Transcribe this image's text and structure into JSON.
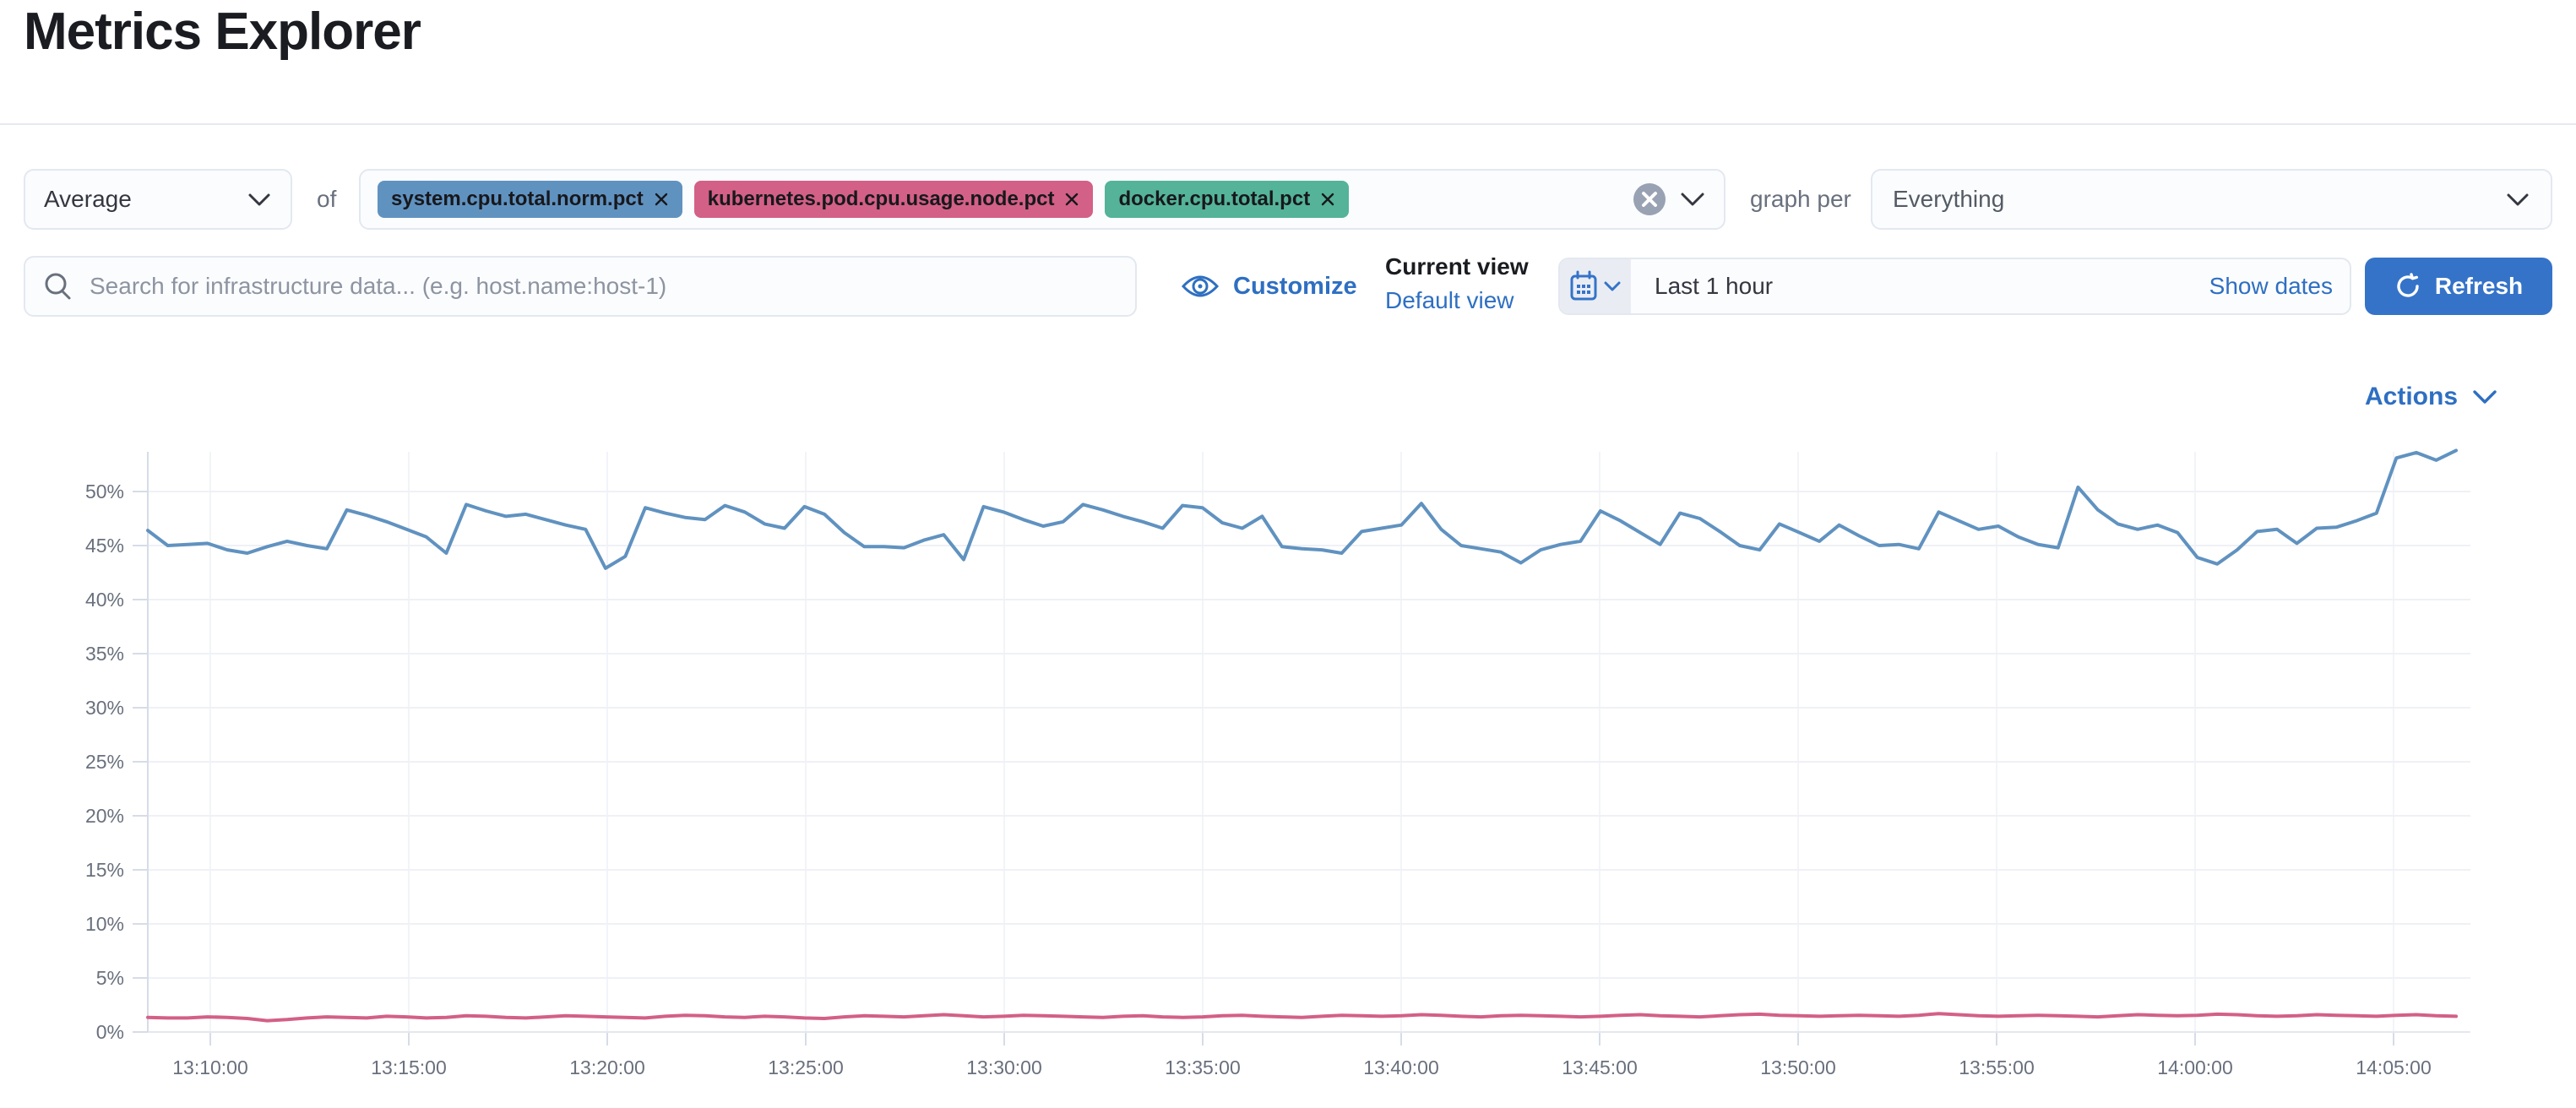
{
  "page": {
    "title": "Metrics Explorer"
  },
  "toolbar": {
    "aggregation": {
      "value": "Average"
    },
    "of_label": "of",
    "metrics": [
      {
        "label": "system.cpu.total.norm.pct",
        "color": "#6092c0"
      },
      {
        "label": "kubernetes.pod.cpu.usage.node.pct",
        "color": "#d36086"
      },
      {
        "label": "docker.cpu.total.pct",
        "color": "#54b399"
      }
    ],
    "graph_per_label": "graph per",
    "group_by": {
      "value": "Everything"
    }
  },
  "search": {
    "placeholder": "Search for infrastructure data... (e.g. host.name:host-1)"
  },
  "view_controls": {
    "customize_label": "Customize",
    "current_view_label": "Current view",
    "view_name": "Default view"
  },
  "time_controls": {
    "range_label": "Last 1 hour",
    "show_dates_label": "Show dates",
    "refresh_label": "Refresh"
  },
  "actions": {
    "label": "Actions"
  },
  "colors": {
    "link_blue": "#2e6fc2",
    "primary_button_blue": "#3573c8",
    "series_blue": "#6092c0",
    "series_pink": "#d36086",
    "badge_green": "#54b399"
  },
  "chart_data": {
    "type": "line",
    "title": "",
    "xlabel": "",
    "ylabel": "",
    "grid": true,
    "legend": "none",
    "y_axis": {
      "min": 0,
      "max": 53,
      "tick_step_pct": 5,
      "tick_labels": [
        "0%",
        "5%",
        "10%",
        "15%",
        "20%",
        "25%",
        "30%",
        "35%",
        "40%",
        "45%",
        "50%"
      ]
    },
    "x_axis": {
      "tick_labels": [
        "13:10:00",
        "13:15:00",
        "13:20:00",
        "13:25:00",
        "13:30:00",
        "13:35:00",
        "13:40:00",
        "13:45:00",
        "13:50:00",
        "13:55:00",
        "14:00:00",
        "14:05:00"
      ],
      "start_time": "13:08:30",
      "sample_interval_seconds": 30
    },
    "series": [
      {
        "name": "system.cpu.total.norm.pct",
        "color": "#6092c0",
        "unit": "%",
        "values": [
          46.4,
          45.0,
          45.1,
          45.2,
          44.6,
          44.3,
          44.9,
          45.4,
          45.0,
          44.7,
          48.3,
          47.8,
          47.2,
          46.5,
          45.8,
          44.3,
          48.8,
          48.2,
          47.7,
          47.9,
          47.4,
          46.9,
          46.5,
          42.9,
          44.0,
          48.5,
          48.0,
          47.6,
          47.4,
          48.7,
          48.1,
          47.0,
          46.6,
          48.6,
          47.9,
          46.2,
          44.9,
          44.9,
          44.8,
          45.5,
          46.0,
          43.7,
          48.6,
          48.1,
          47.4,
          46.8,
          47.2,
          48.8,
          48.3,
          47.7,
          47.2,
          46.6,
          48.7,
          48.5,
          47.1,
          46.6,
          47.7,
          44.9,
          44.7,
          44.6,
          44.3,
          46.3,
          46.6,
          46.9,
          48.9,
          46.5,
          45.0,
          44.7,
          44.4,
          43.4,
          44.6,
          45.1,
          45.4,
          48.2,
          47.3,
          46.2,
          45.1,
          48.0,
          47.5,
          46.3,
          45.0,
          44.6,
          47.0,
          46.2,
          45.4,
          46.9,
          45.9,
          45.0,
          45.1,
          44.7,
          48.1,
          47.3,
          46.5,
          46.8,
          45.8,
          45.1,
          44.8,
          50.4,
          48.3,
          47.0,
          46.5,
          46.9,
          46.2,
          43.9,
          43.3,
          44.6,
          46.3,
          46.5,
          45.2,
          46.6,
          46.7,
          47.3,
          48.0,
          53.1,
          53.6,
          52.9,
          53.8
        ]
      },
      {
        "name": "kubernetes.pod.cpu.usage.node.pct",
        "color": "#d36086",
        "unit": "%",
        "values": [
          1.35,
          1.3,
          1.3,
          1.4,
          1.35,
          1.25,
          1.05,
          1.15,
          1.3,
          1.4,
          1.35,
          1.3,
          1.45,
          1.4,
          1.3,
          1.35,
          1.5,
          1.45,
          1.35,
          1.3,
          1.4,
          1.5,
          1.45,
          1.4,
          1.35,
          1.3,
          1.45,
          1.55,
          1.5,
          1.4,
          1.35,
          1.45,
          1.4,
          1.3,
          1.25,
          1.4,
          1.5,
          1.45,
          1.4,
          1.5,
          1.6,
          1.5,
          1.4,
          1.45,
          1.55,
          1.5,
          1.45,
          1.4,
          1.35,
          1.45,
          1.5,
          1.4,
          1.35,
          1.4,
          1.5,
          1.55,
          1.45,
          1.4,
          1.35,
          1.45,
          1.55,
          1.5,
          1.45,
          1.5,
          1.6,
          1.55,
          1.45,
          1.4,
          1.5,
          1.55,
          1.5,
          1.45,
          1.4,
          1.45,
          1.55,
          1.6,
          1.5,
          1.45,
          1.4,
          1.5,
          1.6,
          1.65,
          1.55,
          1.5,
          1.45,
          1.5,
          1.55,
          1.5,
          1.45,
          1.55,
          1.7,
          1.6,
          1.5,
          1.45,
          1.5,
          1.55,
          1.5,
          1.45,
          1.4,
          1.5,
          1.6,
          1.55,
          1.5,
          1.55,
          1.65,
          1.6,
          1.5,
          1.45,
          1.5,
          1.6,
          1.55,
          1.5,
          1.45,
          1.55,
          1.6,
          1.5,
          1.45
        ]
      }
    ]
  }
}
